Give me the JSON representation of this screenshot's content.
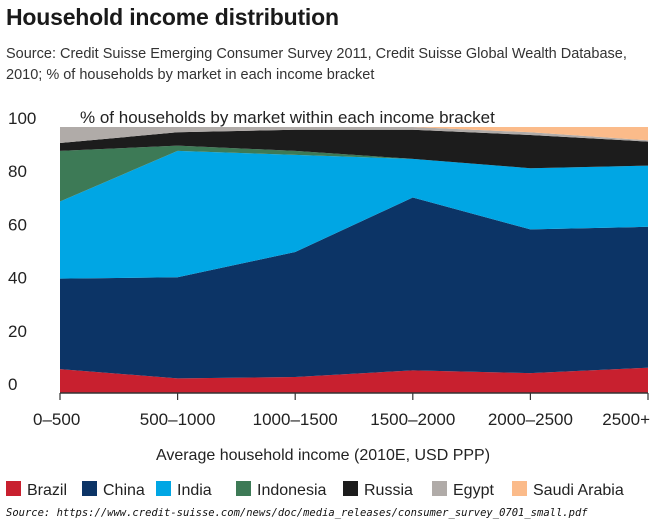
{
  "header": {
    "title": "Household income distribution",
    "subtitle": "Source: Credit Suisse Emerging Consumer Survey 2011, Credit Suisse Global Wealth Database, 2010; % of households by market in each income bracket"
  },
  "footer": {
    "source": "Source: https://www.credit-suisse.com/news/doc/media_releases/consumer_survey_0701_small.pdf"
  },
  "chart_data": {
    "type": "area",
    "stacked": true,
    "title": "% of households by market within each income bracket",
    "xlabel": "Average household income (2010E, USD PPP)",
    "ylabel": "",
    "ylim": [
      0,
      100
    ],
    "yticks": [
      0,
      20,
      40,
      60,
      80,
      100
    ],
    "grid": false,
    "legend": "bottom",
    "categories": [
      "0–500",
      "500–1000",
      "1000–1500",
      "1500–2000",
      "2000–2500",
      "2500+"
    ],
    "series": [
      {
        "name": "Brazil",
        "color": "#c8202f",
        "values": [
          9,
          5.5,
          6,
          8.5,
          7.5,
          9.5
        ]
      },
      {
        "name": "China",
        "color": "#0c3466",
        "values": [
          34,
          38,
          47,
          65,
          54,
          53
        ]
      },
      {
        "name": "India",
        "color": "#00a6e4",
        "values": [
          29,
          47.5,
          36.5,
          14.5,
          23,
          23
        ]
      },
      {
        "name": "Indonesia",
        "color": "#3d7a56",
        "values": [
          19,
          2,
          1.5,
          0,
          0,
          0
        ]
      },
      {
        "name": "Russia",
        "color": "#1c1c1c",
        "values": [
          3,
          5,
          8,
          11,
          12.5,
          9
        ]
      },
      {
        "name": "Egypt",
        "color": "#b0aba8",
        "values": [
          6,
          2,
          1,
          1,
          1,
          0.5
        ]
      },
      {
        "name": "Saudi Arabia",
        "color": "#fbbb8a",
        "values": [
          0,
          0,
          0,
          0,
          2,
          5
        ]
      }
    ]
  }
}
